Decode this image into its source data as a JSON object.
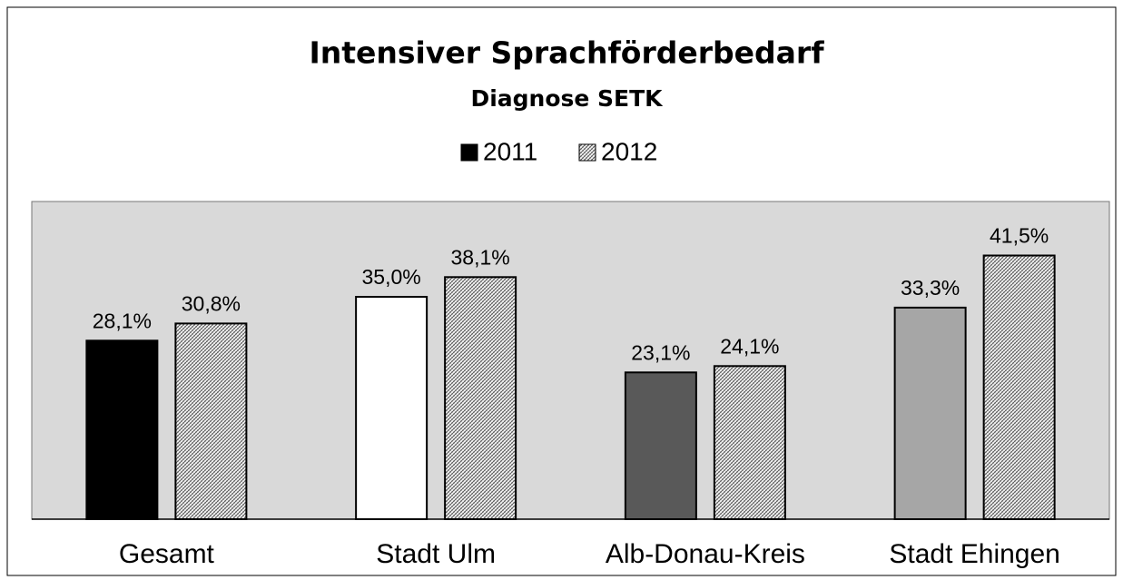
{
  "chart_data": {
    "type": "bar",
    "title": "Intensiver Sprachförderbedarf",
    "subtitle": "Diagnose SETK",
    "categories": [
      "Gesamt",
      "Stadt Ulm",
      "Alb-Donau-Kreis",
      "Stadt Ehingen"
    ],
    "series": [
      {
        "name": "2011",
        "color": "#000000",
        "colors": [
          "#000000",
          "#ffffff",
          "#595959",
          "#a6a6a6"
        ],
        "values": [
          28.1,
          35.0,
          23.1,
          33.3
        ],
        "value_labels": [
          "28,1%",
          "35,0%",
          "23,1%",
          "33,3%"
        ]
      },
      {
        "name": "2012",
        "color": "#bfbfbf",
        "pattern": "hatch",
        "values": [
          30.8,
          38.1,
          24.1,
          41.5
        ],
        "value_labels": [
          "30,8%",
          "38,1%",
          "24,1%",
          "41,5%"
        ]
      }
    ],
    "ylim": [
      0,
      50
    ],
    "legend": "top",
    "plot_background": "#d9d9d9"
  }
}
